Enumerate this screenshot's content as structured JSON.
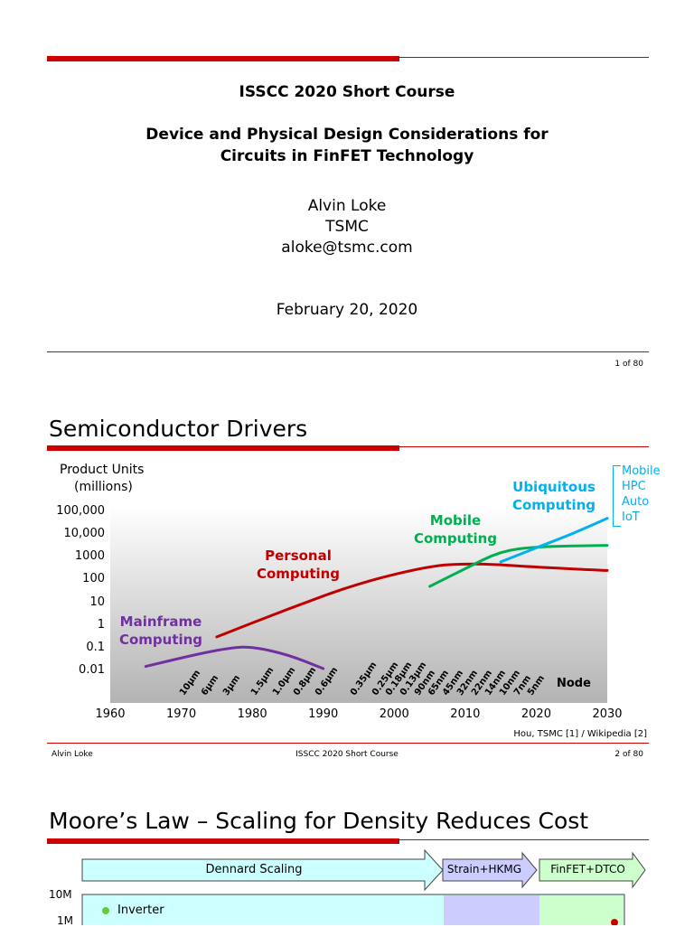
{
  "slide1": {
    "course": "ISSCC 2020 Short Course",
    "title_line1": "Device and Physical Design Considerations for",
    "title_line2": "Circuits in FinFET Technology",
    "author": "Alvin Loke",
    "org": "TSMC",
    "email": "aloke@tsmc.com",
    "date": "February 20, 2020",
    "page": "1 of 80"
  },
  "slide2": {
    "title": "Semiconductor Drivers",
    "ylabel_line1": "Product Units",
    "ylabel_line2": "(millions)",
    "source": "Hou, TSMC [1] / Wikipedia [2]",
    "footer_left": "Alvin Loke",
    "footer_center": "ISSCC 2020 Short Course",
    "page": "2 of 80",
    "node_axis_label": "Node",
    "bracket_items": [
      "Mobile",
      "HPC",
      "Auto",
      "IoT"
    ]
  },
  "slide3": {
    "title": "Moore’s Law – Scaling for Density Reduces Cost",
    "arrows": [
      "Dennard Scaling",
      "Strain+HKMG",
      "FinFET+DTCO"
    ],
    "y_ticks": [
      "10M",
      "1M"
    ],
    "legend_item": "Inverter"
  },
  "chart_data": {
    "type": "line",
    "title": "Semiconductor Drivers",
    "ylabel": "Product Units (millions)",
    "yscale": "log",
    "ylim": [
      0.01,
      100000
    ],
    "xlim": [
      1960,
      2030
    ],
    "x_ticks": [
      1960,
      1970,
      1980,
      1990,
      2000,
      2010,
      2020,
      2030
    ],
    "y_ticks": [
      "100,000",
      "10,000",
      "1000",
      "100",
      "10",
      "1",
      "0.1",
      "0.01"
    ],
    "series": [
      {
        "name": "Mainframe Computing",
        "color": "#7030a0",
        "points": [
          [
            1965,
            0.015
          ],
          [
            1972,
            0.05
          ],
          [
            1977,
            0.1
          ],
          [
            1980,
            0.11
          ],
          [
            1985,
            0.05
          ],
          [
            1990,
            0.012
          ]
        ]
      },
      {
        "name": "Personal Computing",
        "color": "#c00000",
        "points": [
          [
            1975,
            0.3
          ],
          [
            1985,
            5
          ],
          [
            1995,
            70
          ],
          [
            2005,
            400
          ],
          [
            2010,
            500
          ],
          [
            2015,
            450
          ],
          [
            2020,
            350
          ],
          [
            2030,
            250
          ]
        ]
      },
      {
        "name": "Mobile Computing",
        "color": "#00b050",
        "points": [
          [
            2005,
            50
          ],
          [
            2010,
            300
          ],
          [
            2015,
            1800
          ],
          [
            2020,
            2800
          ],
          [
            2030,
            3200
          ]
        ]
      },
      {
        "name": "Ubiquitous Computing",
        "color": "#00b0f0",
        "points": [
          [
            2015,
            600
          ],
          [
            2020,
            2500
          ],
          [
            2025,
            10000
          ],
          [
            2030,
            50000
          ]
        ]
      }
    ],
    "nodes": [
      "10μm",
      "6μm",
      "3μm",
      "1.5μm",
      "1.0μm",
      "0.8μm",
      "0.6μm",
      "0.35μm",
      "0.25μm",
      "0.18μm",
      "0.13μm",
      "90nm",
      "65nm",
      "45nm",
      "32nm",
      "22nm",
      "14nm",
      "10nm",
      "7nm",
      "5nm"
    ],
    "node_years": [
      1971,
      1974,
      1977,
      1981,
      1984,
      1987,
      1990,
      1995,
      1998,
      2000,
      2002,
      2004,
      2006,
      2008,
      2010,
      2012,
      2014,
      2016,
      2018,
      2020
    ]
  }
}
